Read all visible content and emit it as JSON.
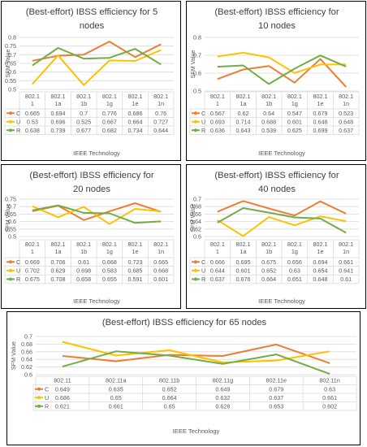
{
  "colors": {
    "C": "#ED7D31",
    "U": "#FFC000",
    "R": "#70AD47",
    "grid": "#D9D9D9",
    "text": "#595959",
    "title": "#404040"
  },
  "charts": [
    {
      "type": "line",
      "title": "(Best-effort) IBSS efficiency for 5 nodes",
      "xlabel": "IEEE Technology",
      "ylabel": "SFM Value",
      "ylim": [
        0.5,
        0.8
      ],
      "yticks": [
        "0.5",
        "0.55",
        "0.6",
        "0.65",
        "0.7",
        "0.75",
        "0.8"
      ],
      "categories": [
        "802.11",
        "802.11a",
        "802.11b",
        "802.11g",
        "802.11e",
        "802.11n"
      ],
      "grid": true,
      "legend": "table",
      "series": [
        {
          "name": "C",
          "values": [
            0.665,
            0.694,
            0.7,
            0.776,
            0.686,
            0.76
          ],
          "labels": [
            "0.665",
            "0.694",
            "0.7",
            "0.776",
            "0.686",
            "0.76"
          ]
        },
        {
          "name": "U",
          "values": [
            0.53,
            0.696,
            0.525,
            0.667,
            0.664,
            0.727
          ],
          "labels": [
            "0.53",
            "0.696",
            "0.525",
            "0.667",
            "0.664",
            "0.727"
          ]
        },
        {
          "name": "R",
          "values": [
            0.638,
            0.739,
            0.677,
            0.682,
            0.734,
            0.644
          ],
          "labels": [
            "0.638",
            "0.739",
            "0.677",
            "0.682",
            "0.734",
            "0.644"
          ]
        }
      ]
    },
    {
      "type": "line",
      "title": "(Best-effort) IBSS efficiency for 10 nodes",
      "xlabel": "IEEE Technology",
      "ylabel": "SFM Value",
      "ylim": [
        0,
        0.8
      ],
      "yticks": [
        "0",
        "0.1",
        "0.2",
        "0.3",
        "0.4",
        "0.5",
        "0.6",
        "0.7",
        "0.8"
      ],
      "yticks_shown": [
        "0.5",
        "0.6",
        "0.7",
        "0.8"
      ],
      "categories": [
        "802.11",
        "802.11a",
        "802.11b",
        "802.11g",
        "802.11e",
        "802.11n"
      ],
      "grid": true,
      "legend": "table",
      "series": [
        {
          "name": "C",
          "values": [
            0.567,
            0.62,
            0.64,
            0.547,
            0.679,
            0.523
          ],
          "labels": [
            "0.567",
            "0.62",
            "0.64",
            "0.547",
            "0.679",
            "0.523"
          ]
        },
        {
          "name": "U",
          "values": [
            0.693,
            0.714,
            0.688,
            0.601,
            0.648,
            0.648
          ],
          "labels": [
            "0.693",
            "0.714",
            "0.688",
            "0.601",
            "0.648",
            "0.648"
          ]
        },
        {
          "name": "R",
          "values": [
            0.636,
            0.643,
            0.539,
            0.625,
            0.699,
            0.637
          ],
          "labels": [
            "0.636",
            "0.643",
            "0.539",
            "0.625",
            "0.699",
            "0.637"
          ]
        }
      ]
    },
    {
      "type": "line",
      "title": "(Best-effort) IBSS efficiency for 20 nodes",
      "xlabel": "IEEE Technology",
      "ylabel": "SFM Value",
      "ylim": [
        0.5,
        0.75
      ],
      "yticks": [
        "0.5",
        "0.55",
        "0.6",
        "0.65",
        "0.7",
        "0.75"
      ],
      "categories": [
        "802.11",
        "802.11a",
        "802.11b",
        "802.11g",
        "802.11e",
        "802.11n"
      ],
      "grid": true,
      "legend": "table",
      "series": [
        {
          "name": "C",
          "values": [
            0.669,
            0.706,
            0.61,
            0.668,
            0.723,
            0.665
          ],
          "labels": [
            "0.669",
            "0.706",
            "0.61",
            "0.668",
            "0.723",
            "0.665"
          ]
        },
        {
          "name": "U",
          "values": [
            0.702,
            0.629,
            0.698,
            0.583,
            0.685,
            0.668
          ],
          "labels": [
            "0.702",
            "0.629",
            "0.698",
            "0.583",
            "0.685",
            "0.668"
          ]
        },
        {
          "name": "R",
          "values": [
            0.675,
            0.708,
            0.658,
            0.655,
            0.591,
            0.601
          ],
          "labels": [
            "0.675",
            "0.708",
            "0.658",
            "0.655",
            "0.591",
            "0.601"
          ]
        }
      ]
    },
    {
      "type": "line",
      "title": "(Best-effort) IBSS efficiency for 40 nodes",
      "xlabel": "IEEE Technology",
      "ylabel": "SFM Value",
      "ylim": [
        0.6,
        0.7
      ],
      "yticks": [
        "0.6",
        "0.62",
        "0.64",
        "0.66",
        "0.68",
        "0.7"
      ],
      "categories": [
        "802.11",
        "802.11a",
        "802.11b",
        "802.11g",
        "802.11e",
        "802.11n"
      ],
      "grid": true,
      "legend": "table",
      "series": [
        {
          "name": "C",
          "values": [
            0.666,
            0.695,
            0.675,
            0.656,
            0.694,
            0.661
          ],
          "labels": [
            "0.666",
            "0.695",
            "0.675",
            "0.656",
            "0.694",
            "0.661"
          ]
        },
        {
          "name": "U",
          "values": [
            0.644,
            0.601,
            0.652,
            0.63,
            0.654,
            0.641
          ],
          "labels": [
            "0.644",
            "0.601",
            "0.652",
            "0.63",
            "0.654",
            "0.641"
          ]
        },
        {
          "name": "R",
          "values": [
            0.637,
            0.676,
            0.664,
            0.651,
            0.648,
            0.61
          ],
          "labels": [
            "0.637",
            "0.676",
            "0.664",
            "0.651",
            "0.648",
            "0.61"
          ]
        }
      ]
    },
    {
      "type": "line",
      "title": "(Best-effort) IBSS efficiency for 65 nodes",
      "xlabel": "IEEE Technology",
      "ylabel": "SFM Value",
      "ylim": [
        0.6,
        0.7
      ],
      "yticks": [
        "0.6",
        "0.62",
        "0.64",
        "0.66",
        "0.68",
        "0.7"
      ],
      "categories": [
        "802.11",
        "802.11a",
        "802.11b",
        "802.11g",
        "802.11e",
        "802.11n"
      ],
      "grid": true,
      "legend": "table",
      "series": [
        {
          "name": "C",
          "values": [
            0.649,
            0.635,
            0.652,
            0.649,
            0.679,
            0.63
          ],
          "labels": [
            "0.649",
            "0.635",
            "0.652",
            "0.649",
            "0.679",
            "0.63"
          ]
        },
        {
          "name": "U",
          "values": [
            0.686,
            0.65,
            0.664,
            0.632,
            0.637,
            0.661
          ],
          "labels": [
            "0.686",
            "0.65",
            "0.664",
            "0.632",
            "0.637",
            "0.661"
          ]
        },
        {
          "name": "R",
          "values": [
            0.621,
            0.661,
            0.65,
            0.628,
            0.653,
            0.602
          ],
          "labels": [
            "0.621",
            "0.661",
            "0.65",
            "0.628",
            "0.653",
            "0.602"
          ]
        }
      ]
    }
  ]
}
